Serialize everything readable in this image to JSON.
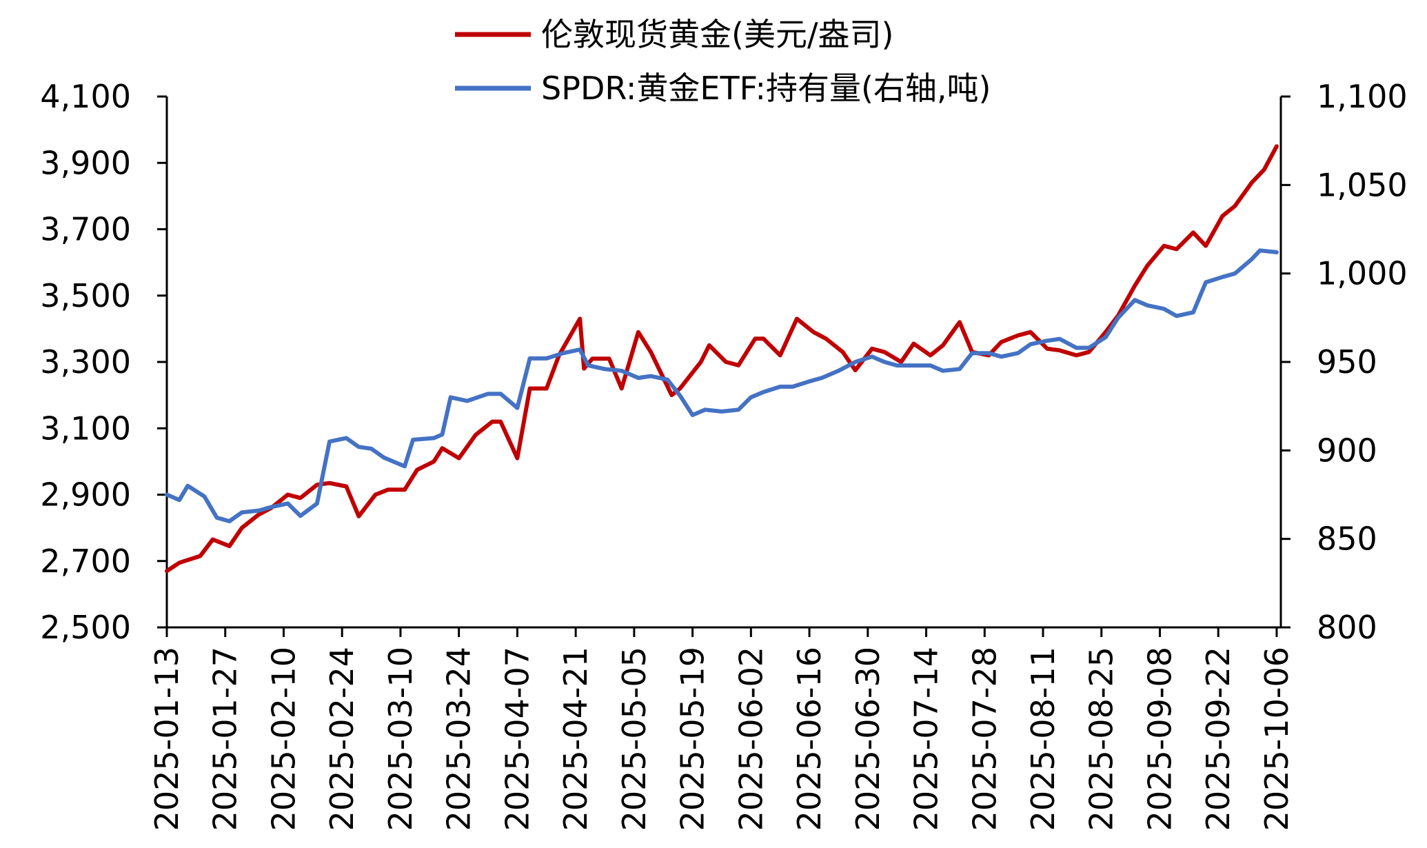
{
  "chart_data": {
    "type": "line",
    "legend": {
      "placement": "top-center"
    },
    "grid": false,
    "x_ticks": [
      "2025-01-13",
      "2025-01-27",
      "2025-02-10",
      "2025-02-24",
      "2025-03-10",
      "2025-03-24",
      "2025-04-07",
      "2025-04-21",
      "2025-05-05",
      "2025-05-19",
      "2025-06-02",
      "2025-06-16",
      "2025-06-30",
      "2025-07-14",
      "2025-07-28",
      "2025-08-11",
      "2025-08-25",
      "2025-09-08",
      "2025-09-22",
      "2025-10-06"
    ],
    "x_range": [
      "2025-01-13",
      "2025-10-07"
    ],
    "left_axis": {
      "ylim": [
        2500,
        4100
      ],
      "ticks": [
        "2,500",
        "2,700",
        "2,900",
        "3,100",
        "3,300",
        "3,500",
        "3,700",
        "3,900",
        "4,100"
      ]
    },
    "right_axis": {
      "ylim": [
        800,
        1100
      ],
      "ticks": [
        "800",
        "850",
        "900",
        "950",
        "1,000",
        "1,050",
        "1,100"
      ]
    },
    "series": [
      {
        "name": "伦敦现货黄金(美元/盎司)",
        "axis": "left",
        "color": "#C00000",
        "points": [
          [
            "2025-01-13",
            2670
          ],
          [
            "2025-01-16",
            2695
          ],
          [
            "2025-01-21",
            2715
          ],
          [
            "2025-01-24",
            2765
          ],
          [
            "2025-01-28",
            2745
          ],
          [
            "2025-01-31",
            2800
          ],
          [
            "2025-02-04",
            2840
          ],
          [
            "2025-02-07",
            2860
          ],
          [
            "2025-02-11",
            2900
          ],
          [
            "2025-02-14",
            2890
          ],
          [
            "2025-02-18",
            2930
          ],
          [
            "2025-02-21",
            2935
          ],
          [
            "2025-02-25",
            2925
          ],
          [
            "2025-02-28",
            2835
          ],
          [
            "2025-03-04",
            2900
          ],
          [
            "2025-03-07",
            2915
          ],
          [
            "2025-03-11",
            2915
          ],
          [
            "2025-03-14",
            2975
          ],
          [
            "2025-03-18",
            3000
          ],
          [
            "2025-03-20",
            3040
          ],
          [
            "2025-03-24",
            3010
          ],
          [
            "2025-03-28",
            3080
          ],
          [
            "2025-04-01",
            3120
          ],
          [
            "2025-04-03",
            3120
          ],
          [
            "2025-04-07",
            3010
          ],
          [
            "2025-04-10",
            3220
          ],
          [
            "2025-04-14",
            3220
          ],
          [
            "2025-04-17",
            3320
          ],
          [
            "2025-04-22",
            3430
          ],
          [
            "2025-04-23",
            3280
          ],
          [
            "2025-04-25",
            3310
          ],
          [
            "2025-04-29",
            3310
          ],
          [
            "2025-05-02",
            3220
          ],
          [
            "2025-05-06",
            3390
          ],
          [
            "2025-05-09",
            3330
          ],
          [
            "2025-05-14",
            3200
          ],
          [
            "2025-05-16",
            3220
          ],
          [
            "2025-05-21",
            3300
          ],
          [
            "2025-05-23",
            3350
          ],
          [
            "2025-05-27",
            3300
          ],
          [
            "2025-05-30",
            3290
          ],
          [
            "2025-06-03",
            3370
          ],
          [
            "2025-06-05",
            3370
          ],
          [
            "2025-06-09",
            3320
          ],
          [
            "2025-06-13",
            3430
          ],
          [
            "2025-06-17",
            3390
          ],
          [
            "2025-06-20",
            3370
          ],
          [
            "2025-06-24",
            3330
          ],
          [
            "2025-06-27",
            3275
          ],
          [
            "2025-07-01",
            3340
          ],
          [
            "2025-07-04",
            3330
          ],
          [
            "2025-07-08",
            3300
          ],
          [
            "2025-07-11",
            3355
          ],
          [
            "2025-07-15",
            3320
          ],
          [
            "2025-07-18",
            3350
          ],
          [
            "2025-07-22",
            3420
          ],
          [
            "2025-07-25",
            3330
          ],
          [
            "2025-07-29",
            3320
          ],
          [
            "2025-08-01",
            3360
          ],
          [
            "2025-08-05",
            3380
          ],
          [
            "2025-08-08",
            3390
          ],
          [
            "2025-08-12",
            3340
          ],
          [
            "2025-08-15",
            3335
          ],
          [
            "2025-08-19",
            3320
          ],
          [
            "2025-08-22",
            3330
          ],
          [
            "2025-08-26",
            3390
          ],
          [
            "2025-08-29",
            3440
          ],
          [
            "2025-09-02",
            3530
          ],
          [
            "2025-09-05",
            3590
          ],
          [
            "2025-09-09",
            3650
          ],
          [
            "2025-09-12",
            3640
          ],
          [
            "2025-09-16",
            3690
          ],
          [
            "2025-09-19",
            3650
          ],
          [
            "2025-09-23",
            3740
          ],
          [
            "2025-09-26",
            3770
          ],
          [
            "2025-09-30",
            3840
          ],
          [
            "2025-10-03",
            3880
          ],
          [
            "2025-10-06",
            3950
          ]
        ]
      },
      {
        "name": "SPDR:黄金ETF:持有量(右轴,吨)",
        "axis": "right",
        "color": "#4472C4",
        "points": [
          [
            "2025-01-13",
            875
          ],
          [
            "2025-01-16",
            872
          ],
          [
            "2025-01-18",
            880
          ],
          [
            "2025-01-22",
            874
          ],
          [
            "2025-01-25",
            862
          ],
          [
            "2025-01-28",
            860
          ],
          [
            "2025-01-31",
            865
          ],
          [
            "2025-02-04",
            866
          ],
          [
            "2025-02-07",
            868
          ],
          [
            "2025-02-11",
            870
          ],
          [
            "2025-02-14",
            863
          ],
          [
            "2025-02-18",
            870
          ],
          [
            "2025-02-21",
            905
          ],
          [
            "2025-02-25",
            907
          ],
          [
            "2025-02-28",
            902
          ],
          [
            "2025-03-03",
            901
          ],
          [
            "2025-03-06",
            896
          ],
          [
            "2025-03-11",
            891
          ],
          [
            "2025-03-13",
            906
          ],
          [
            "2025-03-18",
            907
          ],
          [
            "2025-03-20",
            909
          ],
          [
            "2025-03-22",
            930
          ],
          [
            "2025-03-26",
            928
          ],
          [
            "2025-03-31",
            932
          ],
          [
            "2025-04-03",
            932
          ],
          [
            "2025-04-07",
            924
          ],
          [
            "2025-04-10",
            952
          ],
          [
            "2025-04-14",
            952
          ],
          [
            "2025-04-18",
            955
          ],
          [
            "2025-04-22",
            957
          ],
          [
            "2025-04-24",
            948
          ],
          [
            "2025-04-28",
            946
          ],
          [
            "2025-05-02",
            945
          ],
          [
            "2025-05-06",
            941
          ],
          [
            "2025-05-09",
            942
          ],
          [
            "2025-05-13",
            940
          ],
          [
            "2025-05-16",
            931
          ],
          [
            "2025-05-19",
            920
          ],
          [
            "2025-05-22",
            923
          ],
          [
            "2025-05-26",
            922
          ],
          [
            "2025-05-30",
            923
          ],
          [
            "2025-06-02",
            930
          ],
          [
            "2025-06-05",
            933
          ],
          [
            "2025-06-09",
            936
          ],
          [
            "2025-06-12",
            936
          ],
          [
            "2025-06-16",
            939
          ],
          [
            "2025-06-19",
            941
          ],
          [
            "2025-06-23",
            945
          ],
          [
            "2025-06-27",
            950
          ],
          [
            "2025-07-01",
            953
          ],
          [
            "2025-07-04",
            950
          ],
          [
            "2025-07-07",
            948
          ],
          [
            "2025-07-11",
            948
          ],
          [
            "2025-07-15",
            948
          ],
          [
            "2025-07-18",
            945
          ],
          [
            "2025-07-22",
            946
          ],
          [
            "2025-07-25",
            955
          ],
          [
            "2025-07-29",
            955
          ],
          [
            "2025-08-01",
            953
          ],
          [
            "2025-08-05",
            955
          ],
          [
            "2025-08-08",
            960
          ],
          [
            "2025-08-12",
            962
          ],
          [
            "2025-08-15",
            963
          ],
          [
            "2025-08-19",
            958
          ],
          [
            "2025-08-22",
            958
          ],
          [
            "2025-08-26",
            964
          ],
          [
            "2025-08-29",
            975
          ],
          [
            "2025-09-02",
            985
          ],
          [
            "2025-09-05",
            982
          ],
          [
            "2025-09-09",
            980
          ],
          [
            "2025-09-12",
            976
          ],
          [
            "2025-09-16",
            978
          ],
          [
            "2025-09-19",
            995
          ],
          [
            "2025-09-23",
            998
          ],
          [
            "2025-09-26",
            1000
          ],
          [
            "2025-09-30",
            1008
          ],
          [
            "2025-10-02",
            1013
          ],
          [
            "2025-10-06",
            1012
          ]
        ]
      }
    ]
  }
}
